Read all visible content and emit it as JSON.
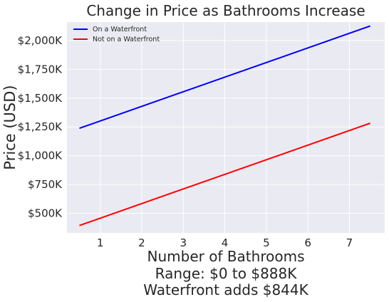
{
  "chart_data": {
    "type": "line",
    "title": "Change in Price as Bathrooms Increase",
    "xlabel_lines": [
      "Number of Bathrooms",
      "Range: $0 to $888K",
      "Waterfront adds $844K"
    ],
    "ylabel": "Price (USD)",
    "x_ticks": [
      "1",
      "2",
      "3",
      "4",
      "5",
      "6",
      "7"
    ],
    "y_ticks": [
      "$500K",
      "$750K",
      "$1,000K",
      "$1,250K",
      "$1,500K",
      "$1,750K",
      "$2,000K"
    ],
    "xlim": [
      0.2,
      7.85
    ],
    "ylim": [
      330,
      2160
    ],
    "grid": true,
    "legend_position": "top-left",
    "series": [
      {
        "name": "On a Waterfront",
        "color": "#0000ff",
        "x": [
          0.5,
          7.5
        ],
        "y": [
          1238,
          2126
        ]
      },
      {
        "name": "Not on a Waterfront",
        "color": "#ff0000",
        "x": [
          0.5,
          7.5
        ],
        "y": [
          394,
          1282
        ]
      }
    ]
  },
  "colors": {
    "plot_background": "#eaeaf2",
    "grid": "#ffffff",
    "text": "#262626"
  }
}
